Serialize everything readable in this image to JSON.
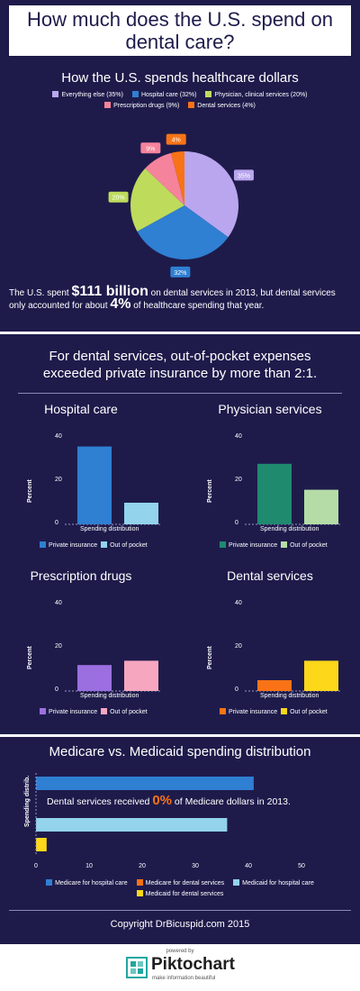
{
  "title": "How much does the U.S.  spend on dental care?",
  "section1": {
    "heading": "How the U.S. spends healthcare dollars",
    "paragraph": {
      "text1": "The U.S. spent ",
      "amount": "$111 billion",
      "text2": " on dental services in 2013, but dental services only accounted for about ",
      "pct": "4%",
      "text3": " of healthcare spending that year."
    }
  },
  "section2": {
    "heading": "For dental services, out-of-pocket expenses exceeded private insurance by more than 2:1."
  },
  "section3": {
    "heading": "Medicare vs. Medicaid spending distribution",
    "note_pre": "Dental services received ",
    "note_value": "0%",
    "note_post": " of Medicare dollars in 2013."
  },
  "footer": {
    "copyright": "Copyright DrBicuspid.com 2015",
    "powered_by": "powered by",
    "brand": "Piktochart",
    "tagline": "make information beautiful"
  },
  "colors": {
    "background": "#1e1b4b",
    "everything_else": "#b9a6ee",
    "hospital_care": "#2f7fd2",
    "physician": "#bedb5c",
    "prescription": "#f6839c",
    "dental": "#f97316"
  },
  "chart_data": [
    {
      "type": "pie",
      "categories": [
        "Everything else",
        "Hospital care",
        "Physician, clinical services",
        "Prescription drugs",
        "Dental services"
      ],
      "values": [
        35,
        32,
        20,
        9,
        4
      ],
      "legend": [
        "Everything else (35%)",
        "Hospital care (32%)",
        "Physician, clinical services (20%)",
        "Prescription drugs (9%)",
        "Dental services (4%)"
      ],
      "data_labels": [
        "35%",
        "32%",
        "20%",
        "9%",
        "4%"
      ],
      "colors": [
        "#b9a6ee",
        "#2f7fd2",
        "#bedb5c",
        "#f6839c",
        "#f97316"
      ],
      "legend_position": "top"
    },
    {
      "type": "bar",
      "title": "Hospital care",
      "categories": [
        "Private insurance",
        "Out of pocket"
      ],
      "values": [
        36,
        10
      ],
      "colors": [
        "#2f7fd2",
        "#93d3ec"
      ],
      "xlabel": "Spending distribution",
      "ylabel": "Percent",
      "ylim": [
        0,
        40
      ],
      "yticks": [
        "0",
        "20",
        "40"
      ]
    },
    {
      "type": "bar",
      "title": "Physician services",
      "categories": [
        "Private insurance",
        "Out of pocket"
      ],
      "values": [
        28,
        16
      ],
      "colors": [
        "#1f8a6e",
        "#b5dca6"
      ],
      "xlabel": "Spending distribution",
      "ylabel": "Percent",
      "ylim": [
        0,
        40
      ],
      "yticks": [
        "0",
        "20",
        "40"
      ]
    },
    {
      "type": "bar",
      "title": "Prescription drugs",
      "categories": [
        "Private insurance",
        "Out of pocket"
      ],
      "values": [
        12,
        14
      ],
      "colors": [
        "#9b6fe0",
        "#f6a6bf"
      ],
      "xlabel": "Spending distribution",
      "ylabel": "Percent",
      "ylim": [
        0,
        40
      ],
      "yticks": [
        "0",
        "20",
        "40"
      ]
    },
    {
      "type": "bar",
      "title": "Dental services",
      "categories": [
        "Private insurance",
        "Out of pocket"
      ],
      "values": [
        5,
        14
      ],
      "colors": [
        "#f97316",
        "#fcd71a"
      ],
      "xlabel": "Spending distribution",
      "ylabel": "Percent",
      "ylim": [
        0,
        40
      ],
      "yticks": [
        "0",
        "20",
        "40"
      ]
    },
    {
      "type": "bar",
      "orientation": "horizontal",
      "categories": [
        "Medicare for hospital care",
        "Medicare for dental services",
        "Medicaid for hospital care",
        "Medicaid for dental services"
      ],
      "values": [
        41,
        0,
        36,
        2
      ],
      "colors": [
        "#2f7fd2",
        "#f97316",
        "#93d3ec",
        "#fcd71a"
      ],
      "ylabel": "Spending distrib.",
      "xlim": [
        0,
        50
      ],
      "xticks": [
        "0",
        "10",
        "20",
        "30",
        "40",
        "50"
      ]
    }
  ]
}
